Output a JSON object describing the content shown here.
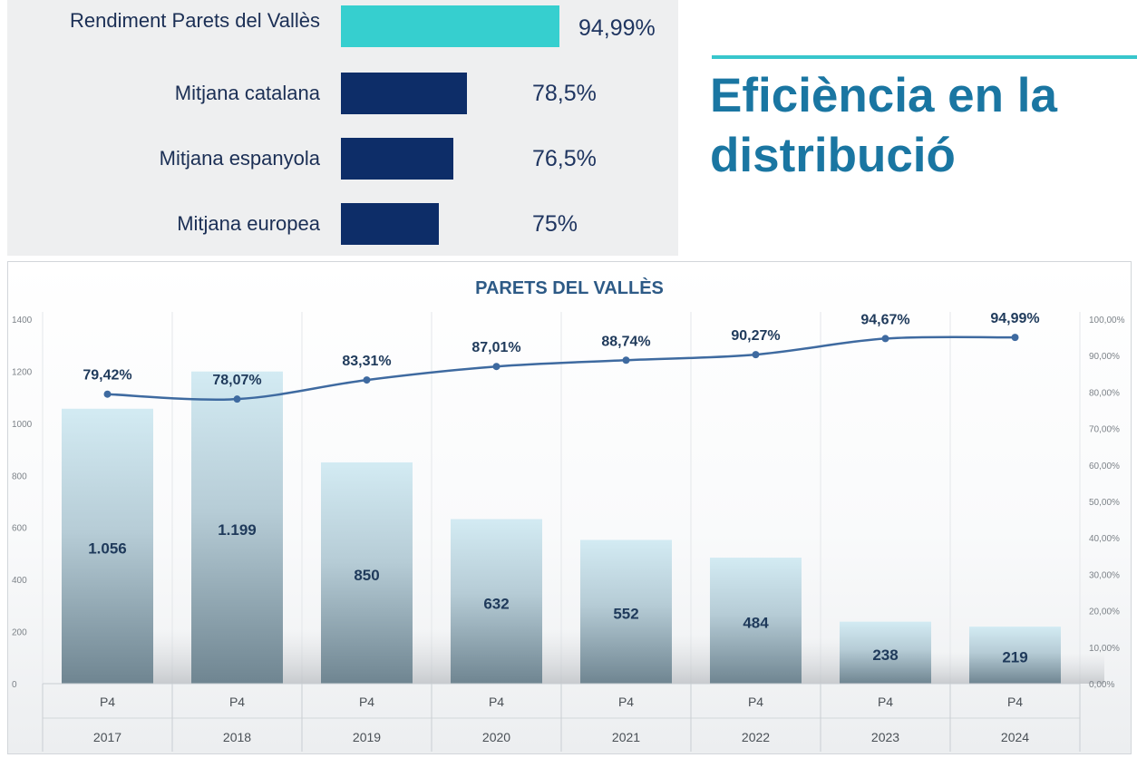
{
  "comparison": {
    "rows": [
      {
        "label": "Rendiment Parets del Vallès",
        "value": 94.99,
        "value_label": "94,99%",
        "color": "#36cfcf"
      },
      {
        "label": "Mitjana catalana",
        "value": 78.5,
        "value_label": "78,5%",
        "color": "#0d2d68"
      },
      {
        "label": "Mitjana espanyola",
        "value": 76.5,
        "value_label": "76,5%",
        "color": "#0d2d68"
      },
      {
        "label": "Mitjana europea",
        "value": 75,
        "value_label": "75%",
        "color": "#0d2d68"
      }
    ]
  },
  "heading": {
    "title": "Eficiència en la distribució",
    "color": "#1a76a2",
    "accent": "#38c6cc"
  },
  "chart_data": {
    "type": "bar",
    "title": "PARETS DEL VALLÈS",
    "categories": [
      "2017",
      "2018",
      "2019",
      "2020",
      "2021",
      "2022",
      "2023",
      "2024"
    ],
    "subcategories": [
      "P4",
      "P4",
      "P4",
      "P4",
      "P4",
      "P4",
      "P4",
      "P4"
    ],
    "series": [
      {
        "type": "bar",
        "axis": "left",
        "values": [
          1056,
          1199,
          850,
          632,
          552,
          484,
          238,
          219
        ],
        "labels": [
          "1.056",
          "1.199",
          "850",
          "632",
          "552",
          "484",
          "238",
          "219"
        ]
      },
      {
        "type": "line",
        "axis": "right",
        "values": [
          79.42,
          78.07,
          83.31,
          87.01,
          88.74,
          90.27,
          94.67,
          94.99
        ],
        "labels": [
          "79,42%",
          "78,07%",
          "83,31%",
          "87,01%",
          "88,74%",
          "90,27%",
          "94,67%",
          "94,99%"
        ]
      }
    ],
    "ylim": [
      0,
      1400
    ],
    "yticks": [
      "0",
      "200",
      "400",
      "600",
      "800",
      "1000",
      "1200",
      "1400"
    ],
    "y2lim": [
      0,
      100
    ],
    "y2ticks": [
      "0,00%",
      "10,00%",
      "20,00%",
      "30,00%",
      "40,00%",
      "50,00%",
      "60,00%",
      "70,00%",
      "80,00%",
      "90,00%",
      "100,00%"
    ],
    "line_color": "#3e6aa0"
  }
}
